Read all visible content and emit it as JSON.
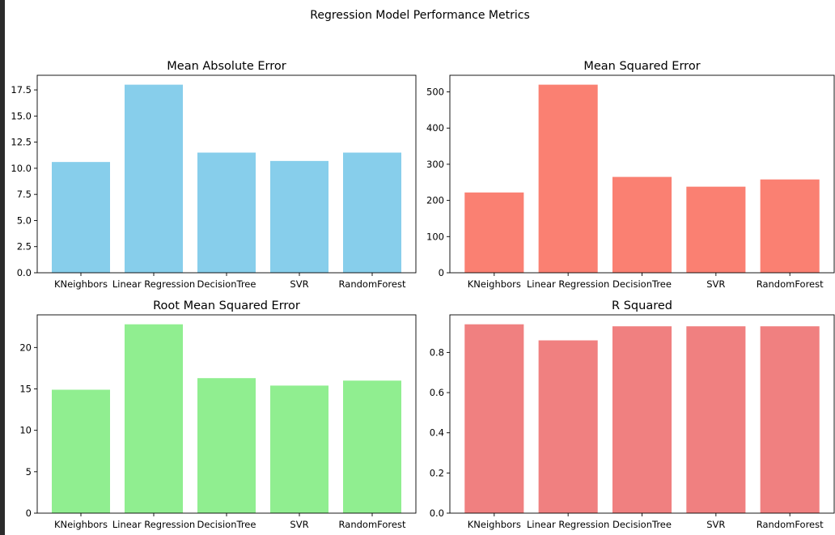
{
  "figure": {
    "title": "Regression Model Performance Metrics"
  },
  "chart_data": [
    {
      "type": "bar",
      "title": "Mean Absolute Error",
      "categories": [
        "KNeighbors",
        "Linear Regression",
        "DecisionTree",
        "SVR",
        "RandomForest"
      ],
      "values": [
        10.6,
        18.0,
        11.5,
        10.7,
        11.5
      ],
      "ylim": [
        0,
        18.9
      ],
      "yticks": [
        0.0,
        2.5,
        5.0,
        7.5,
        10.0,
        12.5,
        15.0,
        17.5
      ],
      "ytick_labels": [
        "0.0",
        "2.5",
        "5.0",
        "7.5",
        "10.0",
        "12.5",
        "15.0",
        "17.5"
      ],
      "color": "#87ceeb",
      "xlabel": "",
      "ylabel": ""
    },
    {
      "type": "bar",
      "title": "Mean Squared Error",
      "categories": [
        "KNeighbors",
        "Linear Regression",
        "DecisionTree",
        "SVR",
        "RandomForest"
      ],
      "values": [
        222,
        520,
        265,
        238,
        258
      ],
      "ylim": [
        0,
        546
      ],
      "yticks": [
        0,
        100,
        200,
        300,
        400,
        500
      ],
      "ytick_labels": [
        "0",
        "100",
        "200",
        "300",
        "400",
        "500"
      ],
      "color": "#fa8072",
      "xlabel": "",
      "ylabel": ""
    },
    {
      "type": "bar",
      "title": "Root Mean Squared Error",
      "categories": [
        "KNeighbors",
        "Linear Regression",
        "DecisionTree",
        "SVR",
        "RandomForest"
      ],
      "values": [
        14.9,
        22.8,
        16.3,
        15.4,
        16.0
      ],
      "ylim": [
        0,
        23.94
      ],
      "yticks": [
        0,
        5,
        10,
        15,
        20
      ],
      "ytick_labels": [
        "0",
        "5",
        "10",
        "15",
        "20"
      ],
      "color": "#90ee90",
      "xlabel": "",
      "ylabel": ""
    },
    {
      "type": "bar",
      "title": "R Squared",
      "categories": [
        "KNeighbors",
        "Linear Regression",
        "DecisionTree",
        "SVR",
        "RandomForest"
      ],
      "values": [
        0.94,
        0.86,
        0.93,
        0.93,
        0.93
      ],
      "ylim": [
        0,
        0.987
      ],
      "yticks": [
        0.0,
        0.2,
        0.4,
        0.6,
        0.8
      ],
      "ytick_labels": [
        "0.0",
        "0.2",
        "0.4",
        "0.6",
        "0.8"
      ],
      "color": "#f08080",
      "xlabel": "",
      "ylabel": ""
    }
  ]
}
